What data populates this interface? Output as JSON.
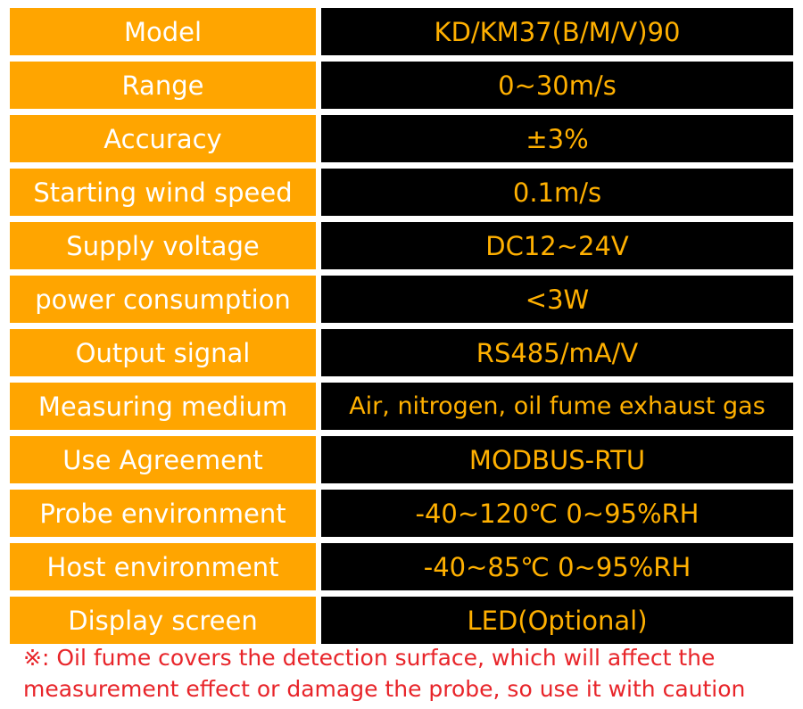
{
  "colors": {
    "label_bg": "#FFA500",
    "label_text": "#FFFFFF",
    "value_bg": "#000000",
    "value_text": "#FFB000",
    "note_text": "#E8252A"
  },
  "specs": [
    {
      "label": "Model",
      "value": "KD/KM37(B/M/V)90"
    },
    {
      "label": "Range",
      "value": "0~30m/s"
    },
    {
      "label": "Accuracy",
      "value": "±3%"
    },
    {
      "label": "Starting wind speed",
      "value": "0.1m/s"
    },
    {
      "label": "Supply voltage",
      "value": "DC12~24V"
    },
    {
      "label": "power consumption",
      "value": "<3W"
    },
    {
      "label": "Output signal",
      "value": "RS485/mA/V"
    },
    {
      "label": "Measuring medium",
      "value": "Air, nitrogen, oil fume exhaust gas"
    },
    {
      "label": "Use Agreement",
      "value": "MODBUS-RTU"
    },
    {
      "label": "Probe environment",
      "value": "-40~120℃  0~95%RH"
    },
    {
      "label": "Host environment",
      "value": "-40~85℃  0~95%RH"
    },
    {
      "label": "Display screen",
      "value": "LED(Optional)"
    }
  ],
  "note": {
    "line1": "※: Oil fume covers the detection surface, which will affect the",
    "line2": "measurement effect or damage the probe, so use it with caution"
  }
}
